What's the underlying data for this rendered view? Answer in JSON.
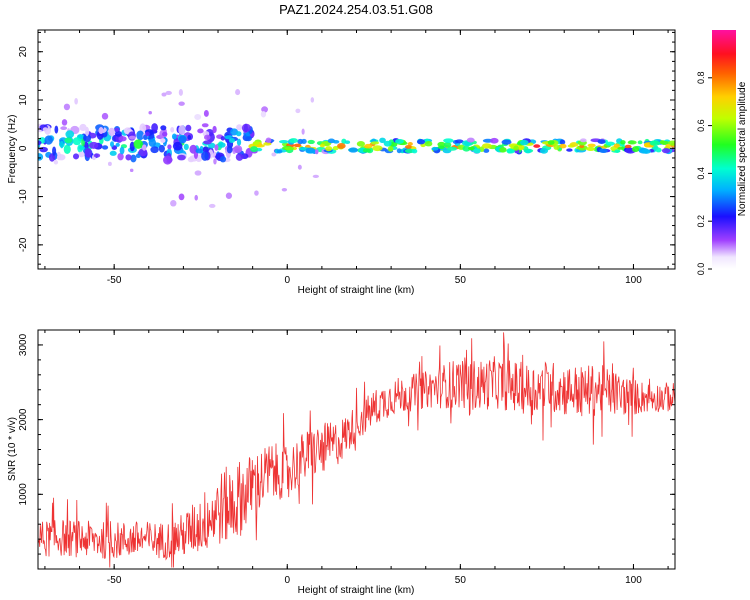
{
  "title": "PAZ1.2024.254.03.51.G08",
  "chart_data": [
    {
      "type": "heatmap",
      "title": "PAZ1.2024.254.03.51.G08",
      "xlabel": "Height of straight line (km)",
      "ylabel": "Frequency (Hz)",
      "xlim": [
        -72,
        112
      ],
      "ylim": [
        -25,
        24.5
      ],
      "xticks": [
        -50,
        0,
        50,
        100
      ],
      "yticks": [
        -20,
        -10,
        0,
        10,
        20
      ],
      "colorbar": {
        "label": "Normalized spectral amplitude",
        "ticks": [
          0.0,
          0.2,
          0.4,
          0.6,
          0.8
        ],
        "range": [
          0,
          1
        ],
        "colormap": "rainbow (white-violet-blue-cyan-green-yellow-orange-red-magenta)",
        "placement": "right"
      },
      "bands": [
        {
          "x_from": -72,
          "x_to": -10,
          "freq_center": 1.0,
          "freq_halfwidth": 3.5,
          "mean_amplitude": 0.35
        },
        {
          "x_from": -10,
          "x_to": 112,
          "freq_center": 0.5,
          "freq_halfwidth": 1.2,
          "mean_amplitude": 0.75
        }
      ],
      "grid": false
    },
    {
      "type": "line",
      "xlabel": "Height of straight line (km)",
      "ylabel": "SNR (10 * v/v)",
      "xlim": [
        -72,
        112
      ],
      "ylim": [
        0,
        3200
      ],
      "xticks": [
        -50,
        0,
        50,
        100
      ],
      "yticks": [
        1000,
        2000,
        3000
      ],
      "series": [
        {
          "color": "#ee3333",
          "x": [
            -72,
            -65,
            -60,
            -55,
            -50,
            -45,
            -40,
            -35,
            -30,
            -25,
            -20,
            -15,
            -10,
            -5,
            0,
            5,
            10,
            15,
            20,
            25,
            30,
            35,
            40,
            45,
            50,
            55,
            60,
            65,
            70,
            75,
            80,
            85,
            90,
            95,
            100,
            105,
            112
          ],
          "y": [
            400,
            420,
            400,
            390,
            380,
            400,
            390,
            380,
            450,
            600,
            800,
            900,
            1100,
            1300,
            1300,
            1500,
            1600,
            1700,
            1950,
            2150,
            2300,
            2350,
            2400,
            2450,
            2500,
            2450,
            2500,
            2450,
            2400,
            2450,
            2400,
            2380,
            2400,
            2350,
            2300,
            2300,
            2300
          ],
          "noise_amplitude": [
            250,
            250,
            250,
            250,
            250,
            250,
            250,
            250,
            300,
            400,
            500,
            550,
            450,
            400,
            350,
            350,
            350,
            300,
            250,
            250,
            250,
            250,
            250,
            300,
            350,
            350,
            350,
            350,
            350,
            350,
            350,
            350,
            350,
            300,
            250,
            200,
            200
          ]
        }
      ],
      "grid": false
    }
  ]
}
